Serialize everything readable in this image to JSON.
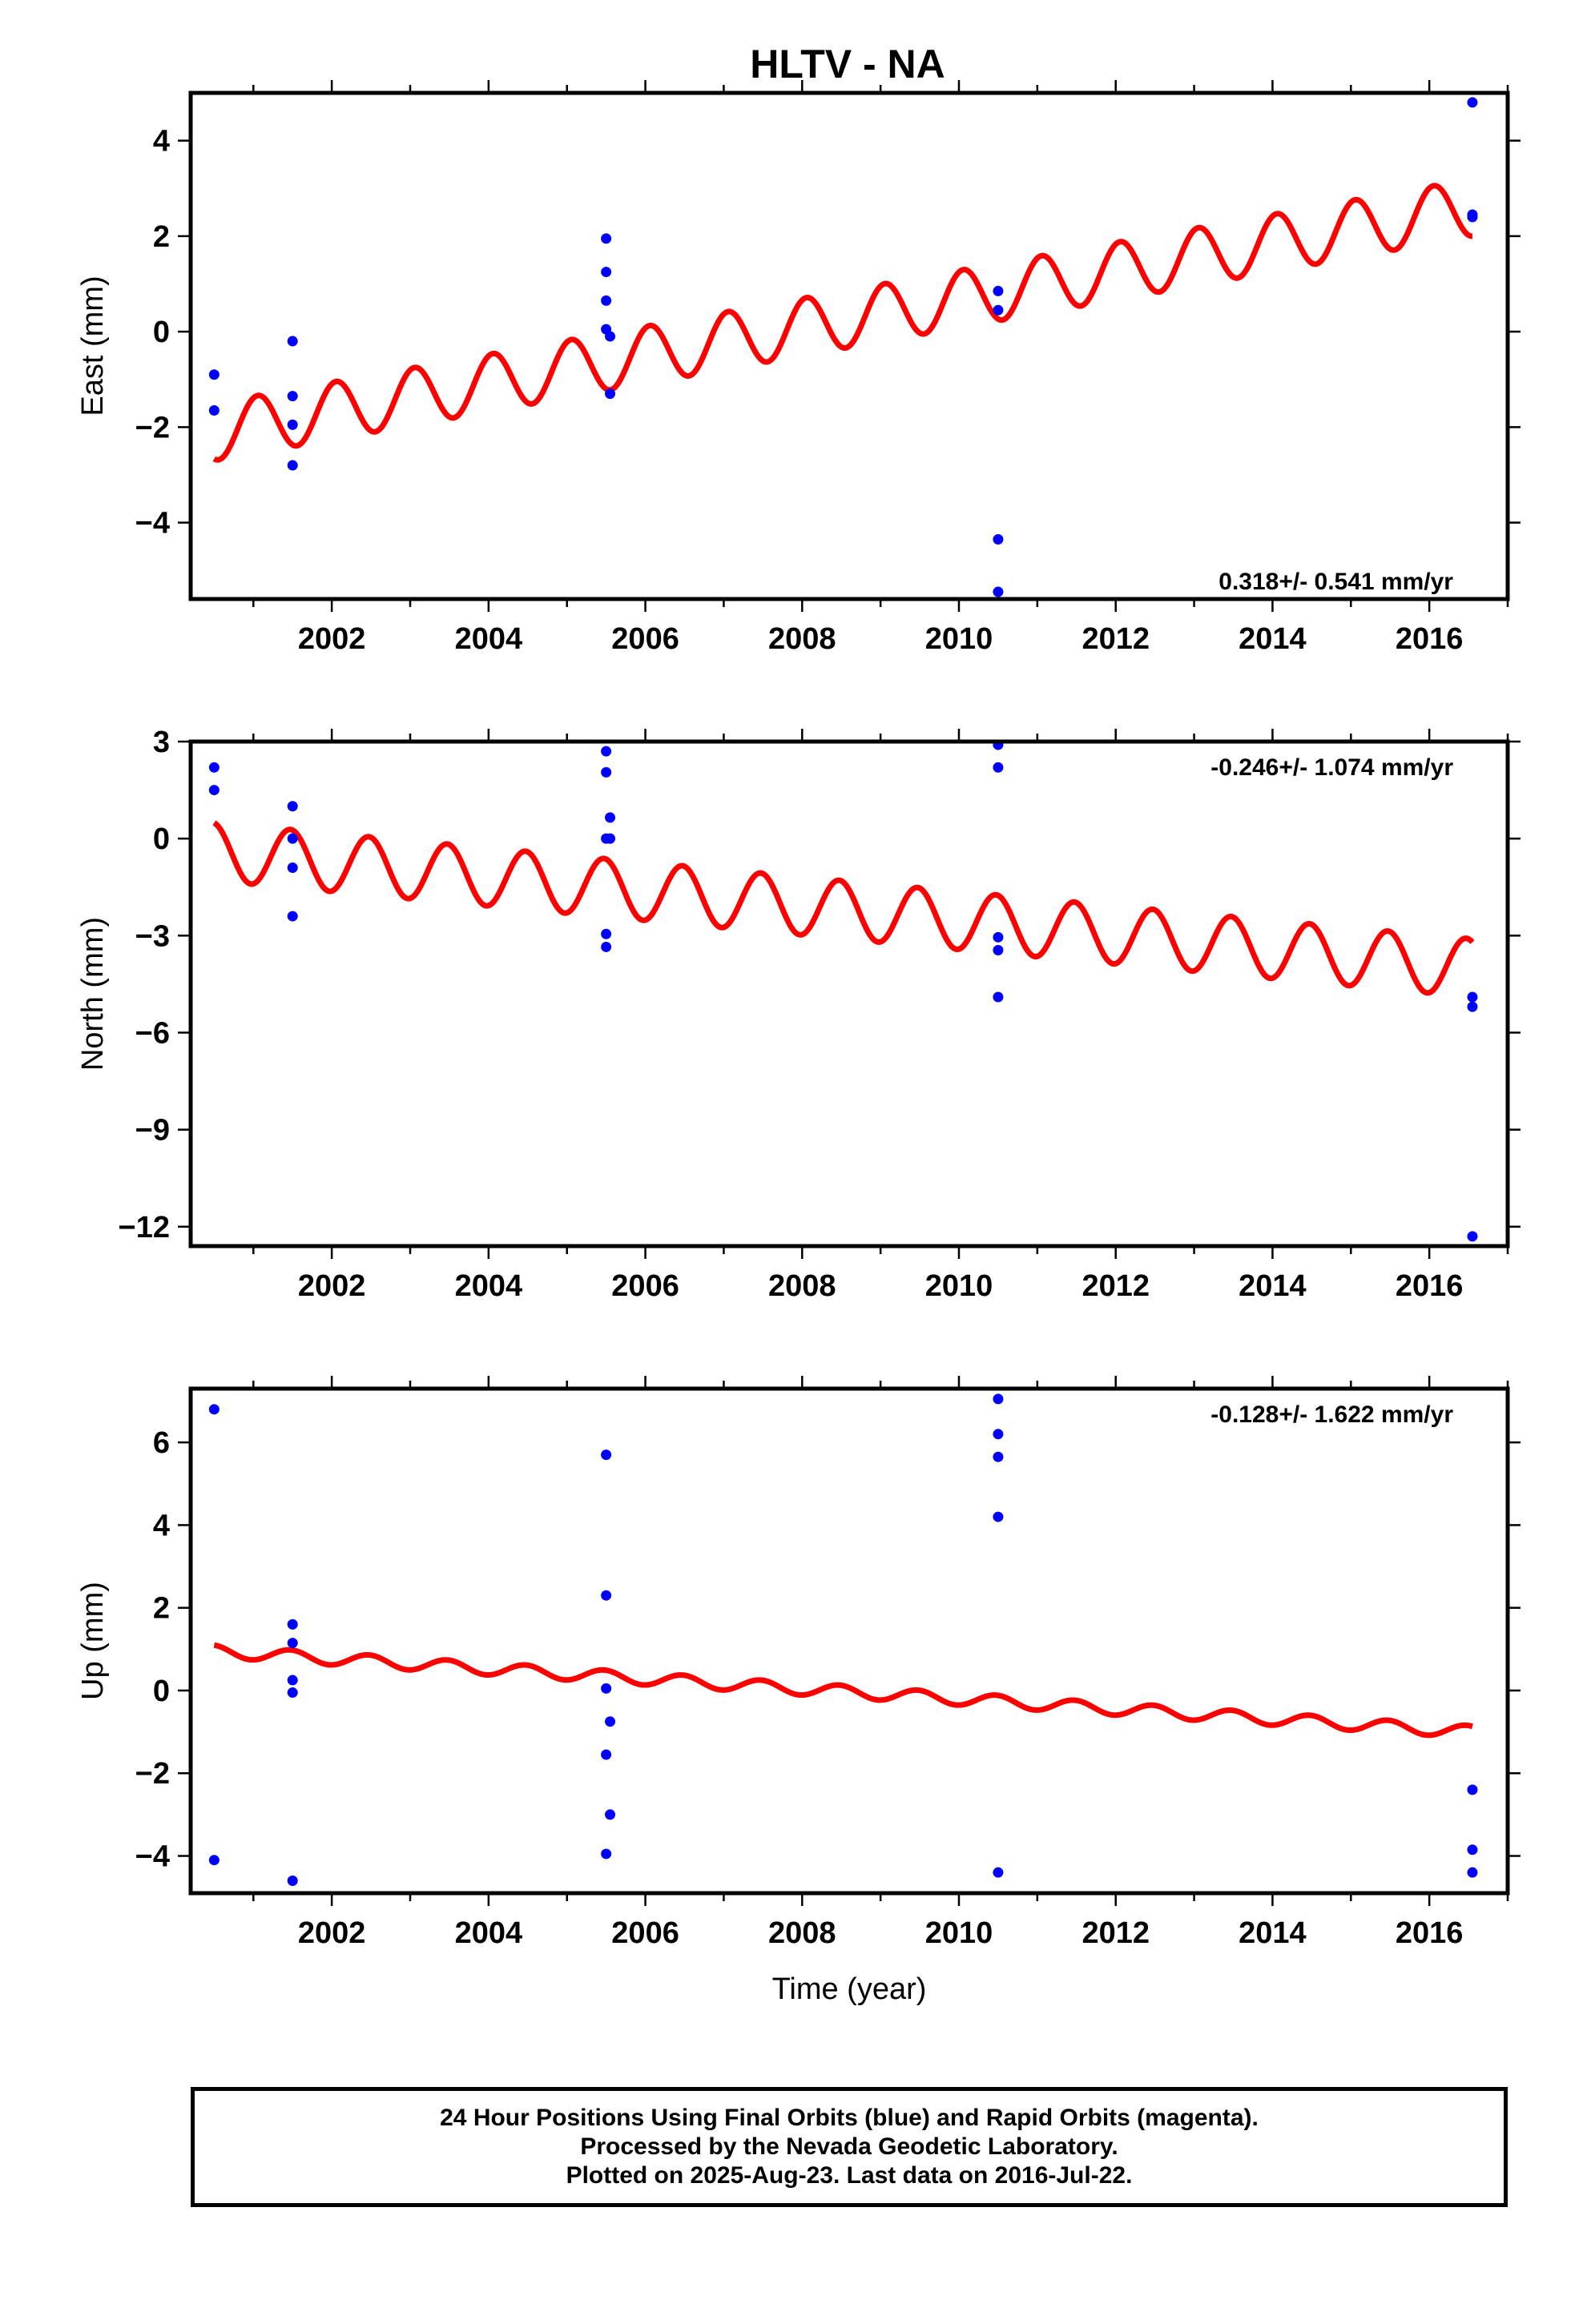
{
  "title": "HLTV - NA",
  "colors": {
    "model": "#ff0000",
    "final_orbits": "#0000ff",
    "axes": "#000000"
  },
  "chart_data": [
    {
      "type": "scatter",
      "panel": "east",
      "ylabel": "East (mm)",
      "xlabel": "",
      "ylim": [
        -5.6,
        5.0
      ],
      "yticks": [
        -4,
        -2,
        0,
        2,
        4
      ],
      "xlim": [
        2000.2,
        2017.0
      ],
      "xticks": [
        2002,
        2004,
        2006,
        2008,
        2010,
        2012,
        2014,
        2016
      ],
      "rate_label": "0.318+/- 0.541 mm/yr",
      "rate_position": "bottom-right",
      "grid": false,
      "model_line": {
        "color": "#ff0000",
        "start": [
          2000.5,
          -2.1
        ],
        "end": [
          2016.55,
          2.6
        ],
        "amplitude": 0.6,
        "period_years": 1.0,
        "phase_deg": 250
      },
      "series": [
        {
          "color": "#0000ff",
          "x": [
            2000.5,
            2000.5,
            2001.5,
            2001.5,
            2001.5,
            2001.5,
            2005.5,
            2005.5,
            2005.5,
            2005.5,
            2005.55,
            2005.55,
            2010.5,
            2010.5,
            2010.5,
            2010.5,
            2016.55,
            2016.55,
            2016.55
          ],
          "y": [
            -0.9,
            -1.65,
            -0.2,
            -1.35,
            -1.95,
            -2.8,
            1.95,
            1.25,
            0.65,
            0.05,
            -0.1,
            -1.3,
            0.85,
            0.45,
            -4.35,
            -5.45,
            4.8,
            2.45,
            2.4
          ]
        }
      ]
    },
    {
      "type": "scatter",
      "panel": "north",
      "ylabel": "North (mm)",
      "xlabel": "",
      "ylim": [
        -12.6,
        3.0
      ],
      "yticks": [
        -12,
        -9,
        -6,
        -3,
        0,
        3
      ],
      "xlim": [
        2000.2,
        2017.0
      ],
      "xticks": [
        2002,
        2004,
        2006,
        2008,
        2010,
        2012,
        2014,
        2016
      ],
      "rate_label": "-0.246+/- 1.074 mm/yr",
      "rate_position": "top-right",
      "grid": false,
      "model_line": {
        "color": "#ff0000",
        "start": [
          2000.5,
          -0.4
        ],
        "end": [
          2016.55,
          -4.0
        ],
        "amplitude": 0.9,
        "period_years": 1.0,
        "phase_deg": 100
      },
      "series": [
        {
          "color": "#0000ff",
          "x": [
            2000.5,
            2000.5,
            2001.5,
            2001.5,
            2001.5,
            2001.5,
            2005.5,
            2005.5,
            2005.5,
            2005.5,
            2005.5,
            2005.55,
            2005.55,
            2010.5,
            2010.5,
            2010.5,
            2010.5,
            2010.5,
            2016.55,
            2016.55,
            2016.55
          ],
          "y": [
            2.2,
            1.5,
            1.0,
            0.0,
            -0.9,
            -2.4,
            2.7,
            2.05,
            0.0,
            -2.95,
            -3.35,
            0.65,
            0.0,
            2.9,
            2.2,
            -3.05,
            -3.45,
            -4.9,
            -4.9,
            -5.2,
            -12.3
          ]
        }
      ]
    },
    {
      "type": "scatter",
      "panel": "up",
      "ylabel": "Up (mm)",
      "xlabel": "Time (year)",
      "ylim": [
        -4.9,
        7.3
      ],
      "yticks": [
        -4,
        -2,
        0,
        2,
        4,
        6
      ],
      "xlim": [
        2000.2,
        2017.0
      ],
      "xticks": [
        2002,
        2004,
        2006,
        2008,
        2010,
        2012,
        2014,
        2016
      ],
      "rate_label": "-0.128+/- 1.622 mm/yr",
      "rate_position": "top-right",
      "grid": false,
      "model_line": {
        "color": "#ff0000",
        "start": [
          2000.5,
          0.95
        ],
        "end": [
          2016.55,
          -1.0
        ],
        "amplitude": 0.15,
        "period_years": 1.0,
        "phase_deg": 100
      },
      "series": [
        {
          "color": "#0000ff",
          "x": [
            2000.5,
            2000.5,
            2001.5,
            2001.5,
            2001.5,
            2001.5,
            2001.5,
            2005.5,
            2005.5,
            2005.5,
            2005.5,
            2005.5,
            2005.55,
            2005.55,
            2010.5,
            2010.5,
            2010.5,
            2010.5,
            2010.5,
            2016.55,
            2016.55,
            2016.55
          ],
          "y": [
            6.8,
            -4.1,
            1.6,
            1.15,
            0.25,
            -0.05,
            -4.6,
            5.7,
            2.3,
            0.05,
            -1.55,
            -3.95,
            -0.75,
            -3.0,
            7.05,
            6.2,
            5.65,
            4.2,
            -4.4,
            -2.4,
            -3.85,
            -4.4
          ]
        }
      ]
    }
  ],
  "caption": {
    "line1": "24 Hour Positions Using Final Orbits (blue) and Rapid Orbits (magenta).",
    "line2": "Processed by the Nevada Geodetic Laboratory.",
    "line3": "Plotted on 2025-Aug-23. Last data on 2016-Jul-22."
  }
}
